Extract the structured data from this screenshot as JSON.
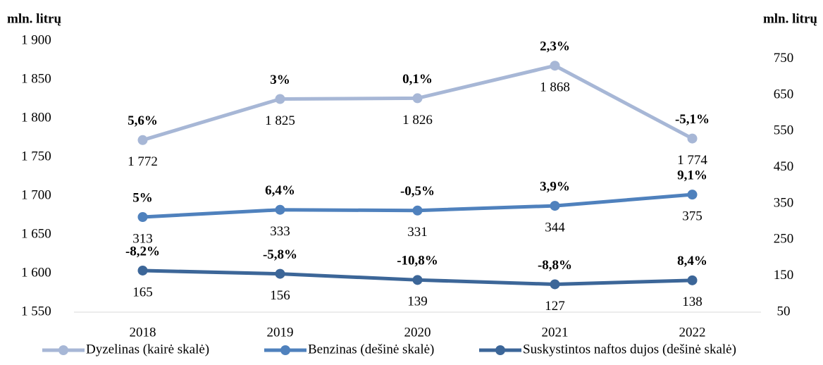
{
  "chart_data": {
    "type": "line",
    "y_label": "mln. litrų",
    "y2_label": "mln. litrų",
    "categories": [
      "2018",
      "2019",
      "2020",
      "2021",
      "2022"
    ],
    "ylim": [
      1550,
      1900
    ],
    "yticks": [
      {
        "value": 1550,
        "label": "1 550"
      },
      {
        "value": 1600,
        "label": "1 600"
      },
      {
        "value": 1650,
        "label": "1 650"
      },
      {
        "value": 1700,
        "label": "1 700"
      },
      {
        "value": 1750,
        "label": "1 750"
      },
      {
        "value": 1800,
        "label": "1 800"
      },
      {
        "value": 1850,
        "label": "1 850"
      },
      {
        "value": 1900,
        "label": "1 900"
      }
    ],
    "y2lim": [
      50,
      800
    ],
    "y2ticks": [
      50,
      150,
      250,
      350,
      450,
      550,
      650,
      750
    ],
    "legend": "bottom",
    "series": [
      {
        "name": "Dyzelinas (kairė skalė)",
        "color": "#a7b7d6",
        "axis": "y",
        "values": [
          1772,
          1825,
          1826,
          1868,
          1774
        ],
        "value_labels": [
          "1 772",
          "1 825",
          "1 826",
          "1 868",
          "1 774"
        ],
        "annotations": [
          "5,6%",
          "3%",
          "0,1%",
          "2,3%",
          "-5,1%"
        ]
      },
      {
        "name": "Benzinas (dešinė skalė)",
        "color": "#4f81bd",
        "axis": "y2",
        "values": [
          313,
          333,
          331,
          344,
          375
        ],
        "annotations": [
          "5%",
          "6,4%",
          "-0,5%",
          "3,9%",
          "9,1%"
        ]
      },
      {
        "name": "Suskystintos naftos dujos (dešinė skalė)",
        "color": "#3c6698",
        "axis": "y2",
        "values": [
          165,
          156,
          139,
          127,
          138
        ],
        "annotations": [
          "-8,2%",
          "-5,8%",
          "-10,8%",
          "-8,8%",
          "8,4%"
        ]
      }
    ]
  }
}
